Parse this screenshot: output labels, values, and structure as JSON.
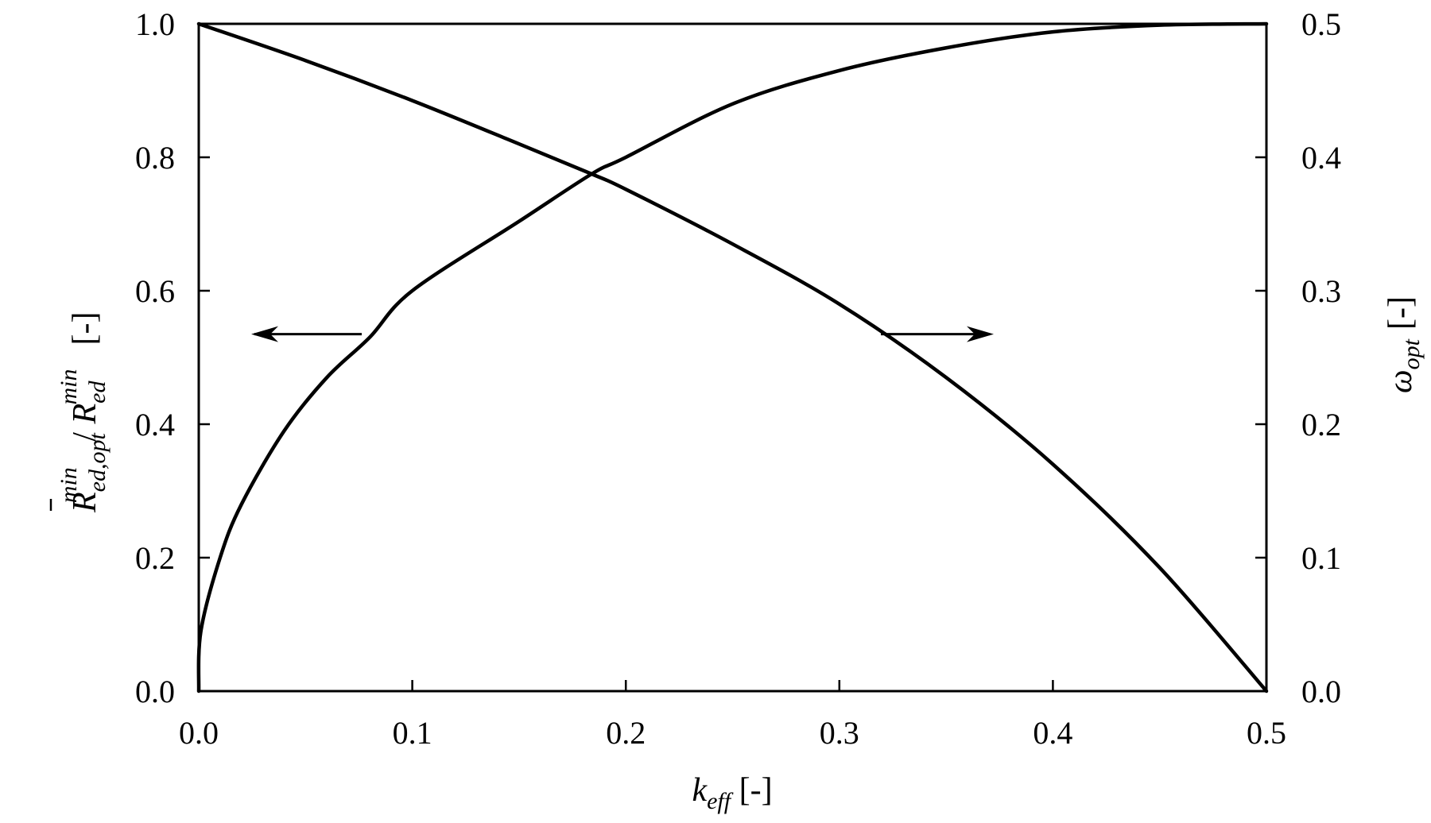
{
  "chart_data": {
    "type": "line",
    "title": "",
    "xlabel": "k_eff [-]",
    "ylabel_left": "R̄_ed,opt^min / R_ed^min [-]",
    "ylabel_right": "ω_opt [-]",
    "xlim": [
      0.0,
      0.5
    ],
    "ylim_left": [
      0.0,
      1.0
    ],
    "ylim_right": [
      0.0,
      0.5
    ],
    "grid": false,
    "legend": "none (arrows indicate axis association)",
    "x_ticks": [
      "0.0",
      "0.1",
      "0.2",
      "0.3",
      "0.4",
      "0.5"
    ],
    "y_ticks_left": [
      "0.0",
      "0.2",
      "0.4",
      "0.6",
      "0.8",
      "1.0"
    ],
    "y_ticks_right": [
      "0.0",
      "0.1",
      "0.2",
      "0.3",
      "0.4",
      "0.5"
    ],
    "series": [
      {
        "name": "R̄_ed,opt^min / R_ed^min",
        "axis": "left",
        "x": [
          0.0,
          0.05,
          0.1,
          0.15,
          0.184,
          0.2,
          0.25,
          0.3,
          0.35,
          0.4,
          0.45,
          0.5
        ],
        "values": [
          1.0,
          0.945,
          0.885,
          0.82,
          0.775,
          0.752,
          0.67,
          0.58,
          0.47,
          0.34,
          0.185,
          0.0
        ]
      },
      {
        "name": "ω_opt",
        "axis": "right",
        "x": [
          0.0,
          0.001,
          0.01,
          0.02,
          0.04,
          0.06,
          0.08,
          0.1,
          0.15,
          0.184,
          0.2,
          0.25,
          0.3,
          0.35,
          0.4,
          0.45,
          0.5
        ],
        "values": [
          0.0,
          0.045,
          0.1,
          0.14,
          0.195,
          0.235,
          0.265,
          0.3,
          0.352,
          0.3875,
          0.4,
          0.44,
          0.465,
          0.482,
          0.494,
          0.499,
          0.5
        ]
      }
    ],
    "annotations": [
      {
        "type": "arrow",
        "direction": "left",
        "from_series": "R̄_ed,opt^min / R_ed^min",
        "meaning": "refers to left axis"
      },
      {
        "type": "arrow",
        "direction": "right",
        "from_series": "ω_opt",
        "meaning": "refers to right axis"
      }
    ],
    "intersection": {
      "x": 0.184,
      "y_left": 0.775
    }
  },
  "axes": {
    "x_label_main": "k",
    "x_label_sub": "eff",
    "x_label_unit": " [-]",
    "left_label": {
      "r1": "R",
      "r1_sub": "ed,opt",
      "r1_sup": "min",
      "sep": " / ",
      "r2": "R",
      "r2_sub": "ed",
      "r2_sup": "min",
      "unit": "[-]"
    },
    "right_label": {
      "main": "ω",
      "sub": "opt",
      "unit": "[-]"
    }
  },
  "colors": {
    "line": "#000000",
    "background": "#ffffff"
  }
}
